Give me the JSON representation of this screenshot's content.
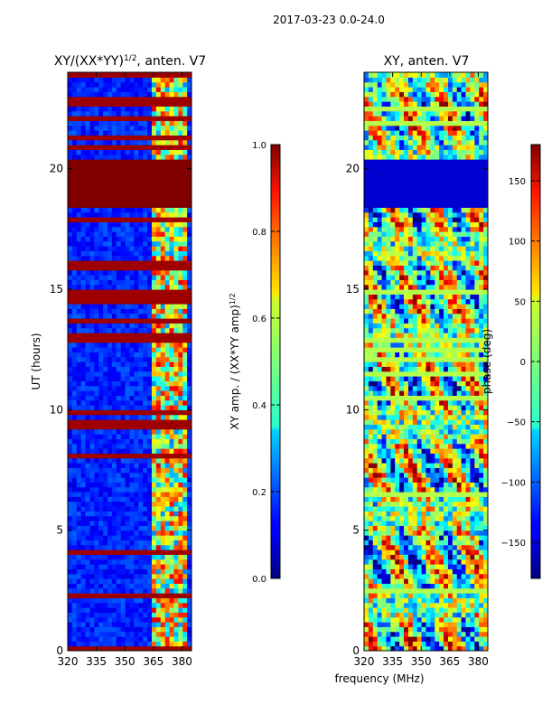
{
  "figure": {
    "suptitle": "2017-03-23 0.0-24.0",
    "xlabel": "frequency (MHz)"
  },
  "chart_data": [
    {
      "type": "heatmap",
      "title": "XY/(XX*YY)",
      "title_sup": "1/2",
      "title_suffix": ", anten. V7",
      "xlabel": "",
      "ylabel": "UT (hours)",
      "xlim": [
        320,
        385
      ],
      "ylim": [
        0,
        24
      ],
      "xticks": [
        320,
        335,
        350,
        365,
        380
      ],
      "yticks": [
        0,
        5,
        10,
        15,
        20
      ],
      "colorbar": {
        "label": "XY amp. / (XX*YY amp)",
        "label_sup": "1/2",
        "range": [
          0.0,
          1.0
        ],
        "ticks": [
          "0.0",
          "0.2",
          "0.4",
          "0.6",
          "0.8",
          "1.0"
        ]
      },
      "features": {
        "saturated_band_hours": [
          18.3,
          20.4
        ],
        "active_freq_range_mhz": [
          363,
          383
        ]
      }
    },
    {
      "type": "heatmap",
      "title": "XY, anten. V7",
      "xlabel": "",
      "ylabel": "",
      "xlim": [
        320,
        385
      ],
      "ylim": [
        0,
        24
      ],
      "xticks": [
        320,
        335,
        350,
        365,
        380
      ],
      "yticks": [
        0,
        5,
        10,
        15,
        20
      ],
      "colorbar": {
        "label": "phase (deg)",
        "range": [
          -180,
          180
        ],
        "ticks": [
          "150",
          "100",
          "50",
          "0",
          "−50",
          "−100",
          "−150"
        ]
      },
      "features": {
        "flat_band_hours": [
          18.3,
          20.4
        ]
      }
    }
  ]
}
